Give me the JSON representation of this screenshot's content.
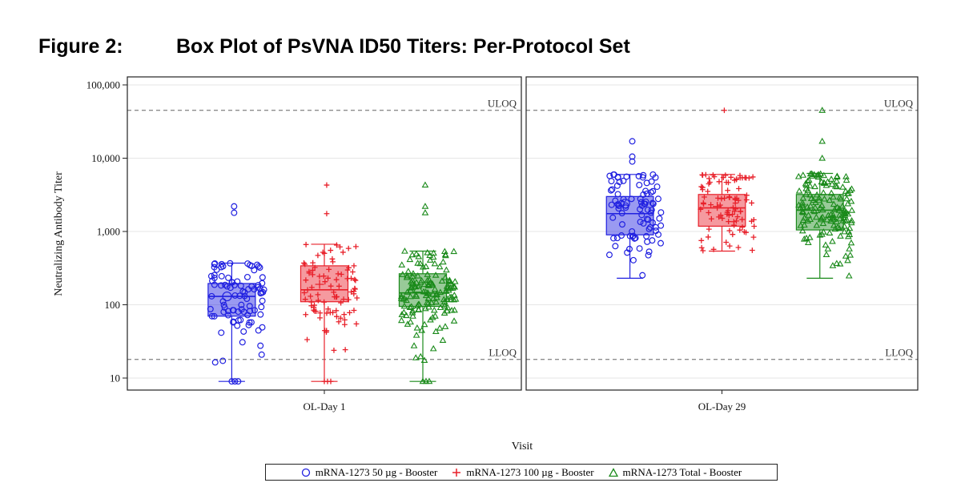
{
  "figure": {
    "number": "Figure 2:",
    "title": "Box Plot of PsVNA ID50 Titers: Per-Protocol Set"
  },
  "colors": {
    "g1": "#2020e0",
    "g2": "#e8202a",
    "g3": "#1a8a1a"
  },
  "chart_data": {
    "type": "box",
    "ylabel": "Neutralizing Antibody Titer",
    "xlabel": "Visit",
    "yscale": "log10",
    "ylim": [
      10,
      100000
    ],
    "yticks": [
      10,
      100,
      1000,
      10000,
      100000
    ],
    "ytick_labels": [
      "10",
      "100",
      "1,000",
      "10,000",
      "100,000"
    ],
    "reference_lines": [
      {
        "label": "ULOQ",
        "value": 45000
      },
      {
        "label": "LLOQ",
        "value": 18
      }
    ],
    "panels": [
      {
        "label": "OL-Day 1"
      },
      {
        "label": "OL-Day 29"
      }
    ],
    "series": [
      {
        "name": "mRNA-1273 50 µg - Booster",
        "marker": "circle",
        "color": "#2020e0",
        "boxes": [
          {
            "panel": 0,
            "whisker_low": 9,
            "q1": 70,
            "median": 130,
            "q3": 195,
            "whisker_high": 370,
            "mean": 130,
            "outliers": [
              2200,
              1800
            ]
          },
          {
            "panel": 1,
            "whisker_low": 230,
            "q1": 900,
            "median": 1750,
            "q3": 3000,
            "whisker_high": 6000,
            "mean": 2400,
            "outliers": [
              17000,
              10500,
              9000
            ]
          }
        ]
      },
      {
        "name": "mRNA-1273 100 µg - Booster",
        "marker": "plus",
        "color": "#e8202a",
        "boxes": [
          {
            "panel": 0,
            "whisker_low": 9,
            "q1": 110,
            "median": 160,
            "q3": 340,
            "whisker_high": 670,
            "mean": 190,
            "outliers": [
              4300,
              1750
            ]
          },
          {
            "panel": 1,
            "whisker_low": 540,
            "q1": 1180,
            "median": 2100,
            "q3": 3200,
            "whisker_high": 6000,
            "mean": 2200,
            "outliers": [
              45000
            ]
          }
        ]
      },
      {
        "name": "mRNA-1273 Total - Booster",
        "marker": "triangle",
        "color": "#1a8a1a",
        "boxes": [
          {
            "panel": 0,
            "whisker_low": 9,
            "q1": 95,
            "median": 145,
            "q3": 265,
            "whisker_high": 540,
            "mean": 165,
            "outliers": [
              4300,
              2200,
              1800
            ]
          },
          {
            "panel": 1,
            "whisker_low": 230,
            "q1": 1050,
            "median": 1950,
            "q3": 3200,
            "whisker_high": 6200,
            "mean": 2000,
            "outliers": [
              45000,
              17000,
              10000
            ]
          }
        ]
      }
    ],
    "legend": {
      "placement": "bottom"
    }
  }
}
